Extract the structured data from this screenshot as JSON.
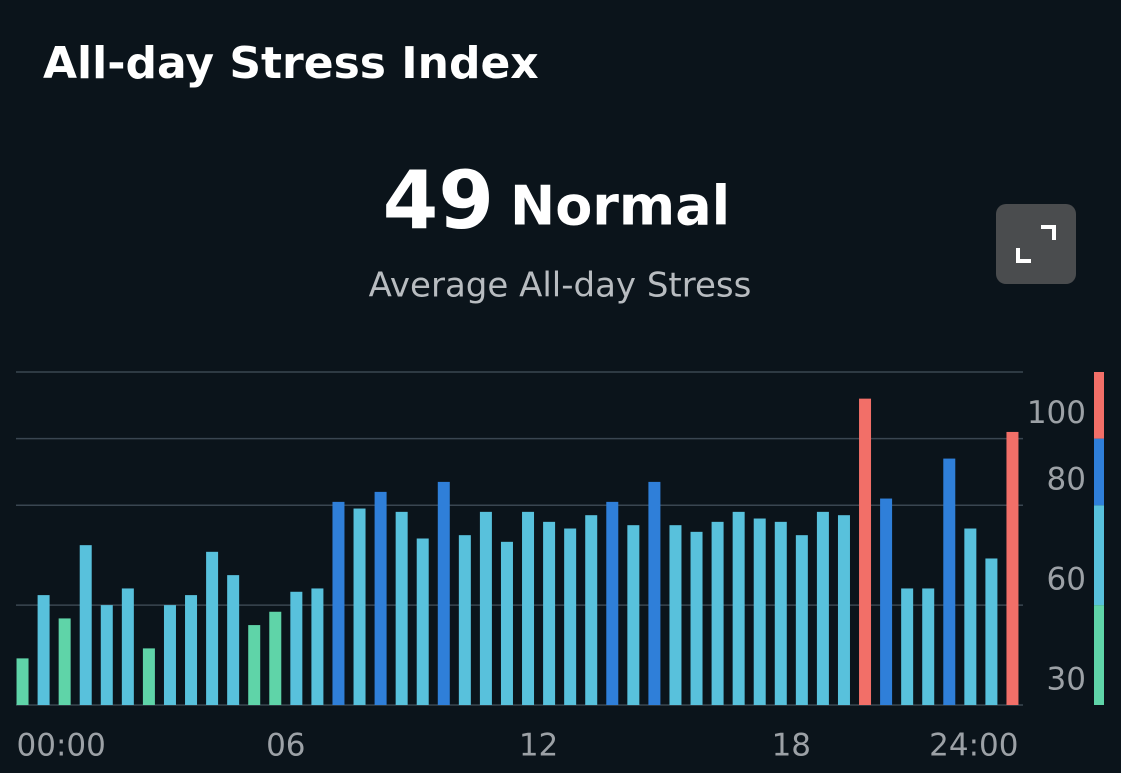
{
  "chart_data": {
    "type": "bar",
    "title": "All-day Stress Index",
    "summary_value": 49,
    "summary_label": "Normal",
    "subtitle": "Average All-day Stress",
    "categories": [
      "00:00",
      null,
      null,
      null,
      null,
      null,
      null,
      null,
      null,
      null,
      null,
      null,
      "06",
      null,
      null,
      null,
      null,
      null,
      null,
      null,
      null,
      null,
      null,
      null,
      "12",
      null,
      null,
      null,
      null,
      null,
      null,
      null,
      null,
      null,
      null,
      null,
      "18",
      null,
      null,
      null,
      null,
      null,
      null,
      null,
      null,
      null,
      null,
      "24:00"
    ],
    "values": [
      14,
      33,
      26,
      48,
      30,
      35,
      17,
      30,
      33,
      46,
      39,
      24,
      28,
      34,
      35,
      61,
      59,
      64,
      58,
      50,
      67,
      51,
      58,
      49,
      58,
      55,
      53,
      57,
      61,
      54,
      67,
      54,
      52,
      55,
      58,
      56,
      55,
      51,
      58,
      57,
      92,
      62,
      35,
      35,
      74,
      53,
      44,
      82
    ],
    "ylim": [
      0,
      100
    ],
    "yticks": [
      30,
      60,
      80,
      100
    ],
    "grid": true,
    "bands": [
      {
        "lim": [
          0,
          30
        ],
        "color": "#5fd4a8"
      },
      {
        "lim": [
          30,
          60
        ],
        "color": "#58c1dc"
      },
      {
        "lim": [
          60,
          80
        ],
        "color": "#2f7fd9"
      },
      {
        "lim": [
          80,
          100
        ],
        "color": "#f26f68"
      }
    ]
  }
}
